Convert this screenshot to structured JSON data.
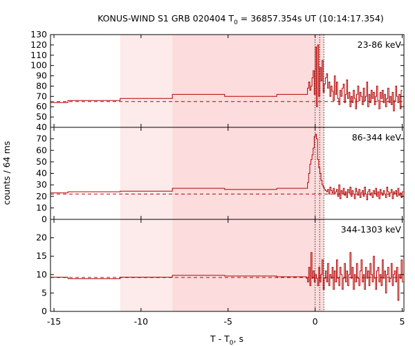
{
  "chart_data": {
    "type": "line",
    "title": "KONUS-WIND S1 GRB 020404 T",
    "title_sub": "0",
    "title_rest": " = 36857.354s UT (10:14:17.354)",
    "xlabel_main": "T - T",
    "xlabel_sub": "0",
    "xlabel_tail": ", s",
    "ylabel": "counts / 64 ms",
    "xlim": [
      -15.2,
      5.1
    ],
    "x_ticks": [
      -15,
      -10,
      -5,
      0,
      5
    ],
    "colors": {
      "series": "#b40000",
      "shade_light": "#fdeaea",
      "shade_dark": "#fcdcdc",
      "axes": "#000000"
    },
    "shaded_intervals": [
      {
        "from": -11.2,
        "to": -8.2,
        "tone": "light"
      },
      {
        "from": -8.2,
        "to": 0.5,
        "tone": "dark"
      }
    ],
    "markers_x": [
      0.0,
      0.26,
      0.5
    ],
    "panels": [
      {
        "label": "23-86 keV",
        "ylim": [
          40,
          130
        ],
        "y_ticks": [
          40,
          50,
          60,
          70,
          80,
          90,
          100,
          110,
          120,
          130
        ],
        "background": 65,
        "pre_burst_steps": [
          {
            "from": -15.2,
            "to": -14.2,
            "value": 64
          },
          {
            "from": -14.2,
            "to": -11.2,
            "value": 66
          },
          {
            "from": -11.2,
            "to": -8.2,
            "value": 68
          },
          {
            "from": -8.2,
            "to": -5.2,
            "value": 72
          },
          {
            "from": -5.2,
            "to": -2.2,
            "value": 70
          },
          {
            "from": -2.2,
            "to": -0.5,
            "value": 72
          }
        ],
        "burst_start": -0.5,
        "burst_step": 0.064,
        "burst_values": [
          72,
          78,
          84,
          76,
          80,
          88,
          95,
          72,
          118,
          60,
          120,
          70,
          98,
          85,
          105,
          74,
          82,
          88,
          92,
          78,
          84,
          70,
          80,
          75,
          66,
          90,
          72,
          84,
          68,
          62,
          76,
          70,
          78,
          82,
          64,
          72,
          86,
          68,
          74,
          60,
          70,
          64,
          76,
          68,
          58,
          72,
          80,
          66,
          74,
          70,
          62,
          78,
          66,
          70,
          84,
          60,
          72,
          64,
          76,
          68,
          74,
          62,
          70,
          80,
          66,
          58,
          74,
          68,
          76,
          64,
          72,
          60,
          68,
          78,
          64,
          70,
          62,
          74,
          56,
          66,
          80,
          70,
          64,
          72,
          58,
          76
        ]
      },
      {
        "label": "86-344 keV",
        "ylim": [
          0,
          80
        ],
        "y_ticks": [
          0,
          10,
          20,
          30,
          40,
          50,
          60,
          70
        ],
        "background": 22,
        "pre_burst_steps": [
          {
            "from": -15.2,
            "to": -14.2,
            "value": 23
          },
          {
            "from": -14.2,
            "to": -11.2,
            "value": 24
          },
          {
            "from": -11.2,
            "to": -8.2,
            "value": 24.5
          },
          {
            "from": -8.2,
            "to": -5.2,
            "value": 27
          },
          {
            "from": -5.2,
            "to": -2.2,
            "value": 26
          },
          {
            "from": -2.2,
            "to": -0.5,
            "value": 27
          }
        ],
        "burst_start": -0.5,
        "burst_step": 0.064,
        "burst_values": [
          27,
          32,
          40,
          48,
          52,
          56,
          62,
          72,
          74,
          70,
          52,
          45,
          40,
          34,
          30,
          28,
          26,
          25,
          24,
          26,
          22,
          28,
          25,
          23,
          27,
          22,
          24,
          26,
          20,
          30,
          18,
          25,
          22,
          27,
          21,
          24,
          19,
          26,
          23,
          28,
          20,
          25,
          22,
          18,
          27,
          24,
          21,
          26,
          19,
          23,
          25,
          20,
          28,
          22,
          17,
          24,
          26,
          21,
          23,
          19,
          25,
          22,
          27,
          20,
          24,
          18,
          26,
          23,
          21,
          25,
          22,
          19,
          28,
          24,
          20,
          23,
          26,
          18,
          24,
          22,
          25,
          20,
          27,
          21,
          23,
          19,
          24
        ]
      },
      {
        "label": "344-1303 keV",
        "ylim": [
          0,
          25
        ],
        "y_ticks": [
          0,
          5,
          10,
          15,
          20
        ],
        "background": 9.2,
        "pre_burst_steps": [
          {
            "from": -15.2,
            "to": -14.2,
            "value": 9.3
          },
          {
            "from": -14.2,
            "to": -11.2,
            "value": 8.9
          },
          {
            "from": -11.2,
            "to": -8.2,
            "value": 9.3
          },
          {
            "from": -8.2,
            "to": -5.2,
            "value": 9.8
          },
          {
            "from": -5.2,
            "to": -2.2,
            "value": 9.6
          },
          {
            "from": -2.2,
            "to": -0.5,
            "value": 9.4
          }
        ],
        "burst_start": -0.5,
        "burst_step": 0.064,
        "burst_values": [
          9,
          8,
          12,
          7,
          16,
          9,
          11,
          8,
          10,
          9,
          7,
          12,
          8,
          10,
          14,
          6,
          9,
          11,
          8,
          13,
          7,
          10,
          9,
          12,
          6,
          11,
          8,
          14,
          9,
          7,
          12,
          10,
          6,
          9,
          13,
          8,
          11,
          7,
          10,
          16,
          9,
          12,
          6,
          10,
          8,
          13,
          9,
          7,
          11,
          14,
          8,
          10,
          6,
          12,
          9,
          11,
          7,
          13,
          10,
          8,
          15,
          9,
          6,
          11,
          12,
          8,
          10,
          7,
          14,
          9,
          11,
          5,
          10,
          12,
          8,
          9,
          13,
          7,
          10,
          11,
          8,
          12,
          3,
          10,
          9,
          14,
          8
        ]
      }
    ]
  }
}
